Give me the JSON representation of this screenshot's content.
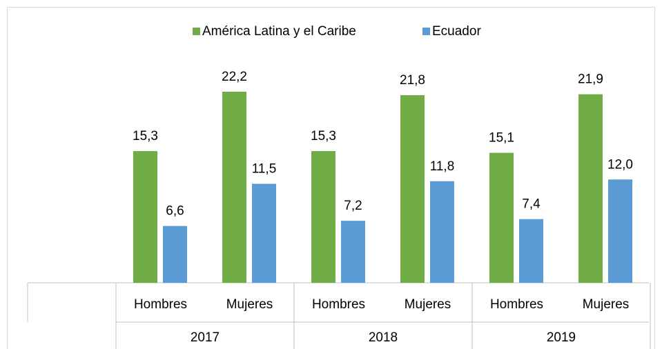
{
  "chart_data": {
    "type": "bar",
    "categories": [
      "Hombres",
      "Mujeres",
      "Hombres",
      "Mujeres",
      "Hombres",
      "Mujeres"
    ],
    "category_groups": [
      "2017",
      "2018",
      "2019"
    ],
    "series": [
      {
        "name": "América Latina y el Caribe",
        "color": "#70ad47",
        "values": [
          15.3,
          22.2,
          15.3,
          21.8,
          15.1,
          21.9
        ],
        "value_labels": [
          "15,3",
          "22,2",
          "15,3",
          "21,8",
          "15,1",
          "21,9"
        ]
      },
      {
        "name": "Ecuador",
        "color": "#5b9bd5",
        "values": [
          6.6,
          11.5,
          7.2,
          11.8,
          7.4,
          12.0
        ],
        "value_labels": [
          "6,6",
          "11,5",
          "7,2",
          "11,8",
          "7,4",
          "12,0"
        ]
      }
    ],
    "legend": "top"
  }
}
